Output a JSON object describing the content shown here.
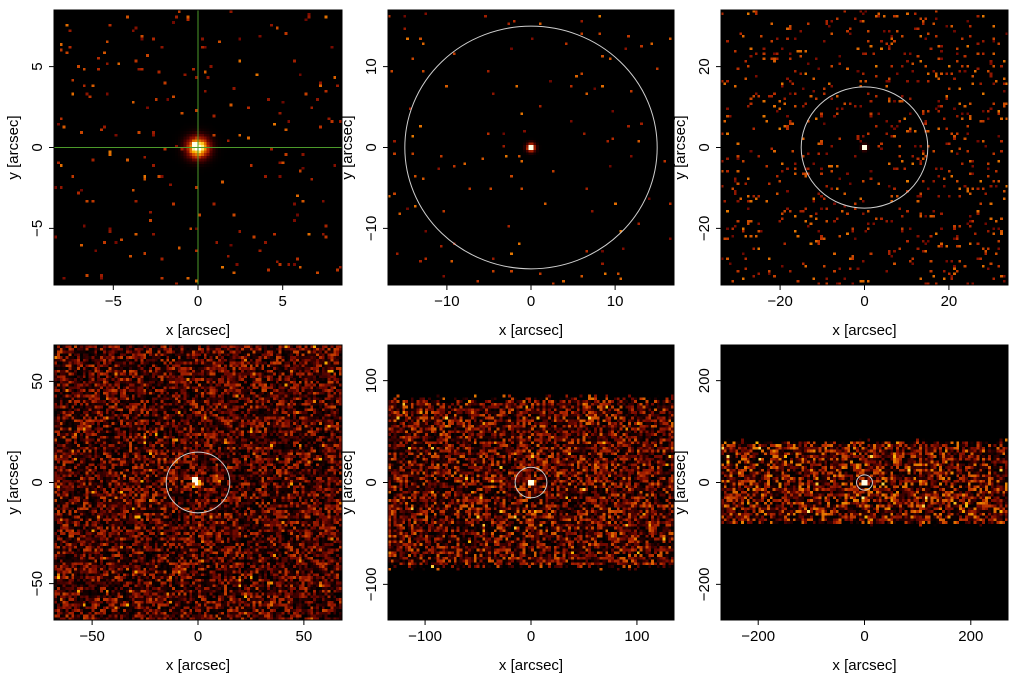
{
  "chart_data": [
    {
      "type": "heatmap",
      "xlabel": "x [arcsec]",
      "ylabel": "y [arcsec]",
      "xlim": [
        -8.5,
        8.5
      ],
      "ylim": [
        -8.5,
        8.5
      ],
      "xticks": [
        -5,
        0,
        5
      ],
      "yticks": [
        -5,
        0,
        5
      ],
      "xtick_labels": [
        "−5",
        "0",
        "5"
      ],
      "ytick_labels": [
        "−5",
        "0",
        "5"
      ],
      "source": {
        "x": 0,
        "y": 0,
        "sigma": 0.45
      },
      "background": {
        "level": 0.02,
        "band_halfwidth": null
      },
      "circle_radius": null,
      "crosshair": true,
      "grid_cells": 100
    },
    {
      "type": "heatmap",
      "xlabel": "x [arcsec]",
      "ylabel": "y [arcsec]",
      "xlim": [
        -17,
        17
      ],
      "ylim": [
        -17,
        17
      ],
      "xticks": [
        -10,
        0,
        10
      ],
      "yticks": [
        -10,
        0,
        10
      ],
      "xtick_labels": [
        "−10",
        "0",
        "10"
      ],
      "ytick_labels": [
        "−10",
        "0",
        "10"
      ],
      "source": {
        "x": 0,
        "y": 0,
        "sigma": 0.35
      },
      "background": {
        "level": 0.01,
        "band_halfwidth": null
      },
      "circle_radius": 15,
      "crosshair": false,
      "grid_cells": 110
    },
    {
      "type": "heatmap",
      "xlabel": "x [arcsec]",
      "ylabel": "y [arcsec]",
      "xlim": [
        -34,
        34
      ],
      "ylim": [
        -34,
        34
      ],
      "xticks": [
        -20,
        0,
        20
      ],
      "yticks": [
        -20,
        0,
        20
      ],
      "xtick_labels": [
        "−20",
        "0",
        "20"
      ],
      "ytick_labels": [
        "−20",
        "0",
        "20"
      ],
      "source": {
        "x": 0,
        "y": 0,
        "sigma": 0.45
      },
      "background": {
        "level": 0.06,
        "band_halfwidth": null
      },
      "circle_radius": 15,
      "crosshair": false,
      "grid_cells": 110
    },
    {
      "type": "heatmap",
      "xlabel": "x [arcsec]",
      "ylabel": "y [arcsec]",
      "xlim": [
        -68,
        68
      ],
      "ylim": [
        -68,
        68
      ],
      "xticks": [
        -50,
        0,
        50
      ],
      "yticks": [
        -50,
        0,
        50
      ],
      "xtick_labels": [
        "−50",
        "0",
        "50"
      ],
      "ytick_labels": [
        "−50",
        "0",
        "50"
      ],
      "source": {
        "x": 0,
        "y": 0,
        "sigma": 1.2
      },
      "background": {
        "level": 0.35,
        "band_halfwidth": null
      },
      "circle_radius": 15,
      "crosshair": false,
      "grid_cells": 100
    },
    {
      "type": "heatmap",
      "xlabel": "x [arcsec]",
      "ylabel": "y [arcsec]",
      "xlim": [
        -135,
        135
      ],
      "ylim": [
        -135,
        135
      ],
      "xticks": [
        -100,
        0,
        100
      ],
      "yticks": [
        -100,
        0,
        100
      ],
      "xtick_labels": [
        "−100",
        "0",
        "100"
      ],
      "ytick_labels": [
        "−100",
        "0",
        "100"
      ],
      "source": {
        "x": 0,
        "y": 0,
        "sigma": 2.0
      },
      "background": {
        "level": 0.4,
        "band_halfwidth": 82
      },
      "circle_radius": 15,
      "crosshair": false,
      "grid_cells": 100
    },
    {
      "type": "heatmap",
      "xlabel": "x [arcsec]",
      "ylabel": "y [arcsec]",
      "xlim": [
        -270,
        270
      ],
      "ylim": [
        -270,
        270
      ],
      "xticks": [
        -200,
        0,
        200
      ],
      "yticks": [
        -200,
        0,
        200
      ],
      "xtick_labels": [
        "−200",
        "0",
        "200"
      ],
      "ytick_labels": [
        "−200",
        "0",
        "200"
      ],
      "source": {
        "x": 0,
        "y": 0,
        "sigma": 3.0
      },
      "background": {
        "level": 0.45,
        "band_halfwidth": 80
      },
      "circle_radius": 15,
      "crosshair": false,
      "grid_cells": 100
    }
  ],
  "colors": {
    "colormap": [
      "#000000",
      "#3a0000",
      "#7a0a00",
      "#b52a00",
      "#e06a00",
      "#f8b000",
      "#ffe866",
      "#ffffff"
    ],
    "crosshair": "#4c9a2a",
    "circle": "#cfcfcf",
    "frame": "#000000"
  }
}
